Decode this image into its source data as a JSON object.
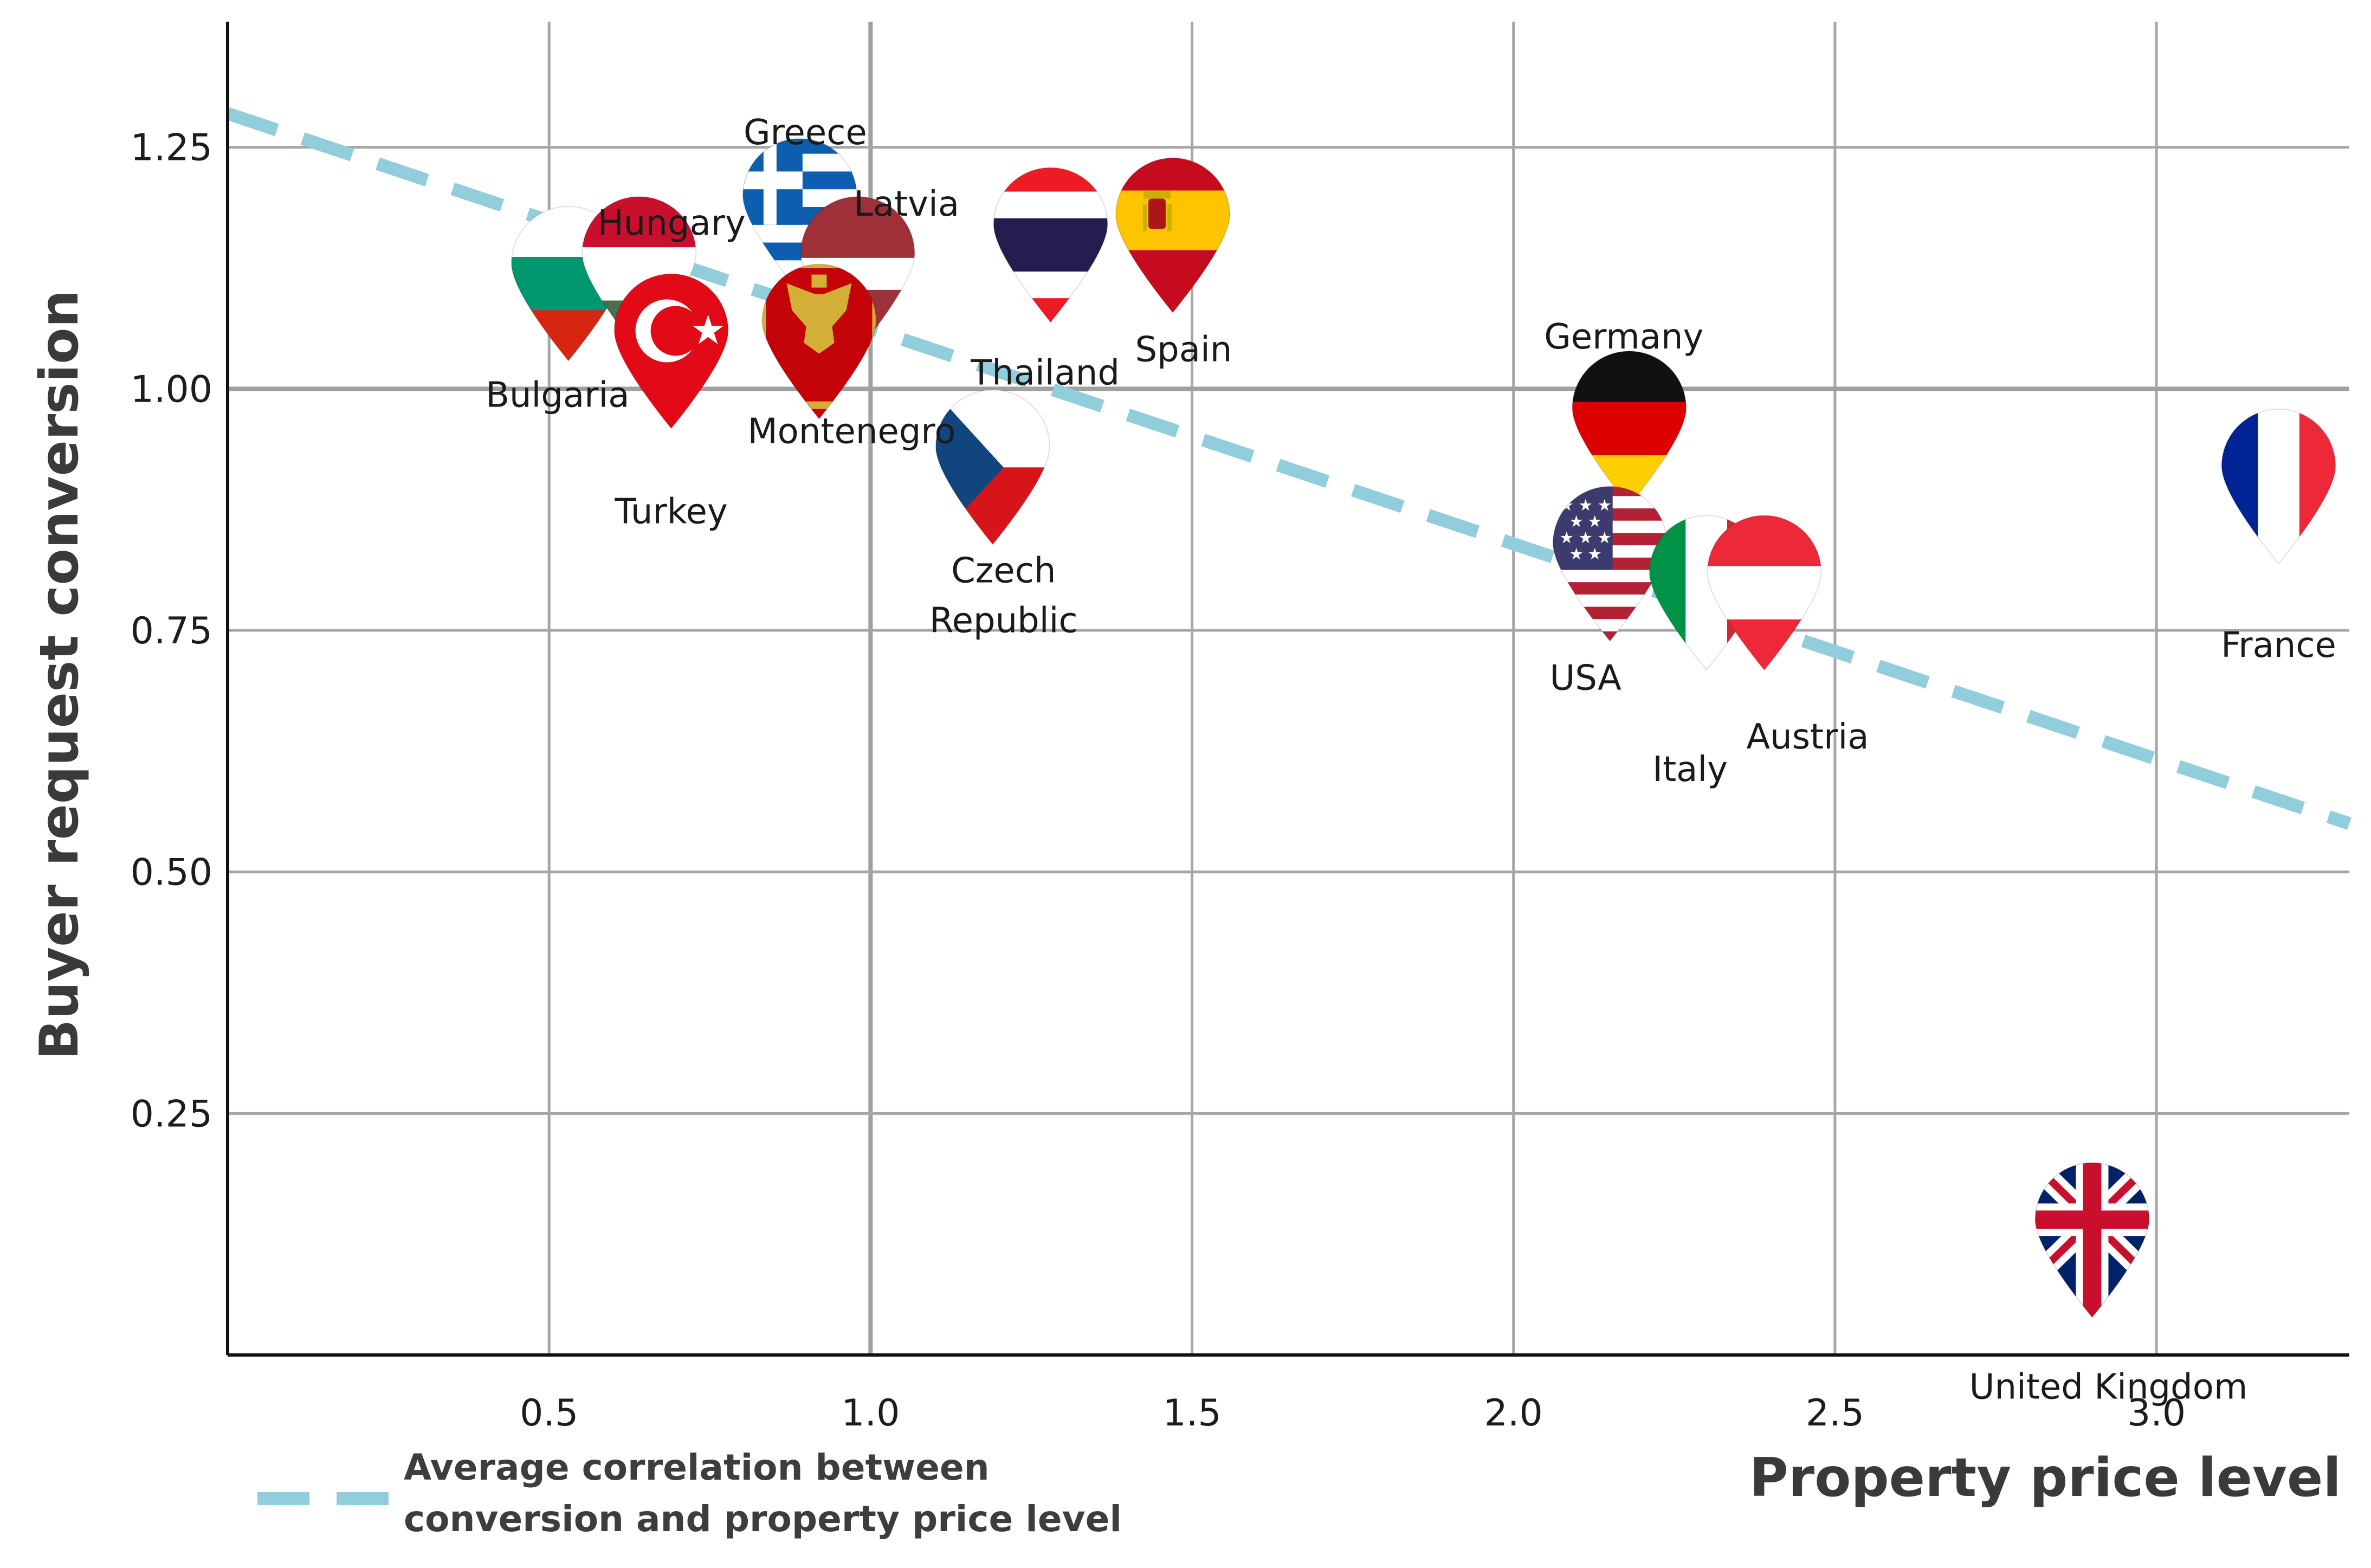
{
  "chart_data": {
    "type": "scatter",
    "xlabel": "Property price level",
    "ylabel": "Buyer request conversion",
    "xlim": [
      0,
      3.3
    ],
    "ylim": [
      0,
      1.38
    ],
    "x_ticks": [
      0.5,
      1.0,
      1.5,
      2.0,
      2.5,
      3.0
    ],
    "x_tick_labels": [
      "0.5",
      "1.0",
      "1.5",
      "2.0",
      "2.5",
      "3.0"
    ],
    "y_ticks": [
      0.25,
      0.5,
      0.75,
      1.0,
      1.25
    ],
    "y_tick_labels": [
      "0.25",
      "0.50",
      "0.75",
      "1.00",
      "1.25"
    ],
    "emphasized_gridlines": {
      "x": [
        1.0
      ],
      "y": [
        1.0
      ]
    },
    "grid": true,
    "points": [
      {
        "name": "Bulgaria",
        "x": 0.53,
        "y": 1.13,
        "flag": "bulgaria"
      },
      {
        "name": "Hungary",
        "x": 0.64,
        "y": 1.14,
        "flag": "hungary"
      },
      {
        "name": "Turkey",
        "x": 0.69,
        "y": 1.06,
        "flag": "turkey"
      },
      {
        "name": "Greece",
        "x": 0.89,
        "y": 1.2,
        "flag": "greece"
      },
      {
        "name": "Latvia",
        "x": 0.98,
        "y": 1.14,
        "flag": "latvia"
      },
      {
        "name": "Montenegro",
        "x": 0.92,
        "y": 1.07,
        "flag": "montenegro"
      },
      {
        "name": "Thailand",
        "x": 1.28,
        "y": 1.17,
        "flag": "thailand"
      },
      {
        "name": "Spain",
        "x": 1.47,
        "y": 1.18,
        "flag": "spain"
      },
      {
        "name": "Czech Republic",
        "x": 1.19,
        "y": 0.94,
        "flag": "czech"
      },
      {
        "name": "Germany",
        "x": 2.18,
        "y": 0.98,
        "flag": "germany"
      },
      {
        "name": "USA",
        "x": 2.15,
        "y": 0.84,
        "flag": "usa"
      },
      {
        "name": "Italy",
        "x": 2.3,
        "y": 0.81,
        "flag": "italy"
      },
      {
        "name": "Austria",
        "x": 2.39,
        "y": 0.81,
        "flag": "austria"
      },
      {
        "name": "France",
        "x": 3.19,
        "y": 0.92,
        "flag": "france"
      },
      {
        "name": "United Kingdom",
        "x": 2.9,
        "y": 0.14,
        "flag": "uk"
      }
    ],
    "trend_line": {
      "label": "Average correlation between conversion and property price level",
      "label_lines": [
        "Average correlation between",
        "conversion and property price level"
      ],
      "style": "dashed",
      "color": "#92cddc",
      "x": [
        0,
        3.3
      ],
      "y": [
        1.285,
        0.55
      ]
    }
  },
  "colors": {
    "grid": "#a6a6a6",
    "grid_emphasis": "#a0a0a0",
    "axis": "#111111",
    "trend": "#92cddc"
  }
}
